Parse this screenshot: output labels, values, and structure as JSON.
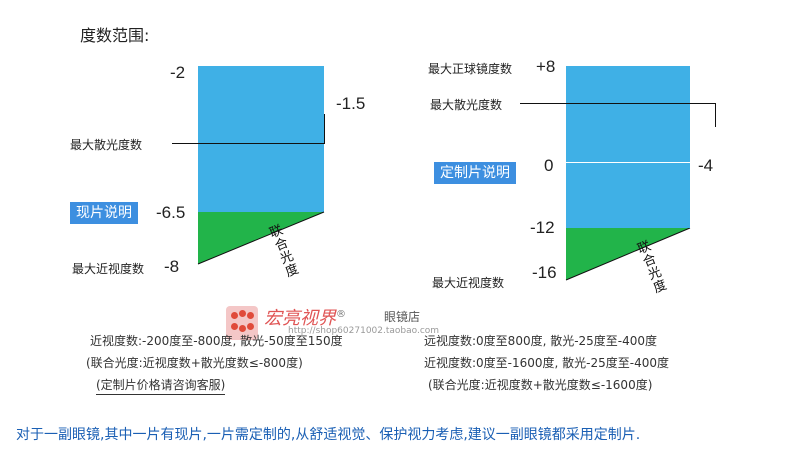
{
  "title": "度数范围:",
  "left": {
    "badge": "现片说明",
    "top_value": "-2",
    "right_value": "-1.5",
    "mid_value": "-6.5",
    "bottom_value": "-8",
    "max_astig_label": "最大散光度数",
    "max_myopia_label": "最大近视度数",
    "combined_label": [
      "联",
      "合",
      "光",
      "度"
    ]
  },
  "right": {
    "badge": "定制片说明",
    "max_sphere_label": "最大正球镜度数",
    "max_sphere_value": "+8",
    "max_astig_label": "最大散光度数",
    "zero_value": "0",
    "right_value": "-4",
    "minus12_value": "-12",
    "max_myopia_label": "最大近视度数",
    "bottom_value": "-16",
    "combined_label": [
      "联",
      "合",
      "光",
      "度"
    ]
  },
  "left_ranges": {
    "line1": "近视度数:-200度至-800度,  散光-50度至150度",
    "line2": "(联合光度:近视度数+散光度数≤-800度)",
    "line3": "(定制片价格请咨询客服)"
  },
  "right_ranges": {
    "line1": "远视度数:0度至800度,  散光-25度至-400度",
    "line2": "近视度数:0度至-1600度,  散光-25度至-400度",
    "line3": "(联合光度:近视度数+散光度数≤-1600度)"
  },
  "logo": {
    "name": "宏亮视界",
    "reg": "®",
    "suffix": "眼镜店",
    "watermark": "http://shop60271002.taobao.com"
  },
  "bottom_note": "对于一副眼镜,其中一片有现片,一片需定制的,从舒适视觉、保护视力考虑,建议一副眼镜都采用定制片.",
  "colors": {
    "blue": "#3fb0e6",
    "green": "#22b44a",
    "badge": "#3d8fe0",
    "note": "#1a5fb4"
  }
}
